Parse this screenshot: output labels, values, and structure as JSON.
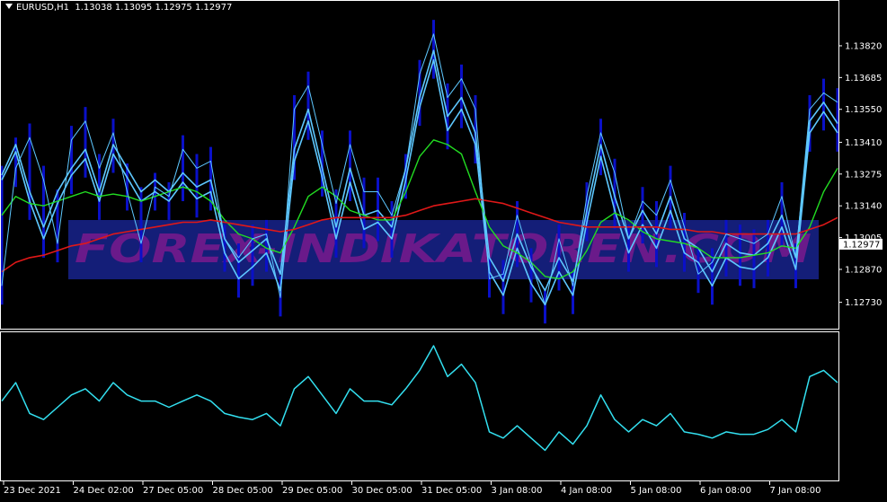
{
  "header": {
    "symbol": "EURUSD,H1",
    "ohlc": "1.13038 1.13095 1.12975 1.12977"
  },
  "watermark": "FOREX-INDIKATOREN.COM",
  "colors": {
    "background": "#000000",
    "frame": "#ffffff",
    "bars": "#0a10c8",
    "band": "#5ec8ff",
    "green_ma": "#22dd22",
    "red_ma": "#e01818",
    "oscillator": "#33e0f0",
    "watermark": "#6a1a8a",
    "watermark_box": "#141e78"
  },
  "chart_data": [
    {
      "type": "line",
      "title": "EURUSD,H1",
      "ylim": [
        1.1266,
        1.139
      ],
      "y_ticks": [
        "1.13820",
        "1.13685",
        "1.13550",
        "1.13410",
        "1.13275",
        "1.13140",
        "1.13005",
        "1.12870",
        "1.12730"
      ],
      "current_price": "1.12977",
      "x_ticks": [
        "23 Dec 2021",
        "24 Dec 02:00",
        "27 Dec 05:00",
        "28 Dec 05:00",
        "29 Dec 05:00",
        "30 Dec 05:00",
        "31 Dec 05:00",
        "3 Jan 08:00",
        "4 Jan 08:00",
        "5 Jan 08:00",
        "6 Jan 08:00",
        "7 Jan 08:00"
      ],
      "x": [
        0,
        4,
        8,
        12,
        16,
        20,
        24,
        28,
        32,
        36,
        40,
        44,
        48,
        52,
        56,
        60,
        64,
        68,
        72,
        76,
        80,
        84,
        88,
        92,
        96,
        100,
        104,
        108,
        112,
        116,
        120,
        124,
        128,
        132,
        136,
        140,
        144,
        148,
        152,
        156,
        160,
        164,
        168,
        172,
        176,
        180,
        184,
        188,
        192,
        196,
        200,
        204,
        208,
        212,
        216,
        220,
        224,
        228,
        232,
        236,
        240
      ],
      "series": [
        {
          "values": [
            1.1327,
            1.134,
            1.132,
            1.1305,
            1.132,
            1.133,
            1.1338,
            1.132,
            1.134,
            1.133,
            1.132,
            1.1325,
            1.132,
            1.1328,
            1.1322,
            1.1325,
            1.13,
            1.129,
            1.1295,
            1.13,
            1.1285,
            1.1338,
            1.1355,
            1.133,
            1.1305,
            1.133,
            1.131,
            1.1312,
            1.1305,
            1.133,
            1.136,
            1.138,
            1.1352,
            1.136,
            1.1345,
            1.1292,
            1.1282,
            1.1302,
            1.1288,
            1.1278,
            1.1292,
            1.1282,
            1.1312,
            1.134,
            1.1318,
            1.13,
            1.1312,
            1.1302,
            1.1318,
            1.13,
            1.1296,
            1.1286,
            1.1298,
            1.1294,
            1.1293,
            1.1298,
            1.131,
            1.1292,
            1.135,
            1.1358,
            1.1349
          ]
        },
        {
          "values": [
            1.1325,
            1.1337,
            1.1316,
            1.13,
            1.1315,
            1.1327,
            1.1334,
            1.1316,
            1.1336,
            1.1326,
            1.1316,
            1.132,
            1.1316,
            1.1324,
            1.1317,
            1.132,
            1.1294,
            1.1283,
            1.1288,
            1.1294,
            1.1278,
            1.1333,
            1.135,
            1.1326,
            1.13,
            1.1324,
            1.1304,
            1.1307,
            1.13,
            1.1325,
            1.1356,
            1.1376,
            1.1346,
            1.1355,
            1.134,
            1.1286,
            1.1276,
            1.1296,
            1.1281,
            1.1272,
            1.1286,
            1.1276,
            1.1307,
            1.1335,
            1.1312,
            1.1294,
            1.1306,
            1.1296,
            1.1312,
            1.1294,
            1.129,
            1.128,
            1.1292,
            1.1288,
            1.1287,
            1.1292,
            1.1305,
            1.1287,
            1.1345,
            1.1354,
            1.1345
          ]
        },
        {
          "values": [
            1.131,
            1.1318,
            1.1315,
            1.1314,
            1.1316,
            1.1318,
            1.132,
            1.1318,
            1.1319,
            1.1318,
            1.1316,
            1.1318,
            1.132,
            1.1322,
            1.132,
            1.1316,
            1.1308,
            1.1302,
            1.13,
            1.1296,
            1.1294,
            1.1305,
            1.1318,
            1.1322,
            1.1318,
            1.1312,
            1.131,
            1.1308,
            1.1308,
            1.132,
            1.1335,
            1.1342,
            1.134,
            1.1336,
            1.132,
            1.1305,
            1.1297,
            1.1294,
            1.129,
            1.1284,
            1.1283,
            1.1286,
            1.1295,
            1.1307,
            1.1311,
            1.1308,
            1.1303,
            1.13,
            1.1299,
            1.1298,
            1.1296,
            1.1292,
            1.1292,
            1.1292,
            1.1293,
            1.1294,
            1.1297,
            1.1296,
            1.1305,
            1.132,
            1.133
          ]
        },
        {
          "values": [
            1.1286,
            1.129,
            1.1292,
            1.1293,
            1.1295,
            1.1297,
            1.1298,
            1.13,
            1.1302,
            1.1303,
            1.1304,
            1.1305,
            1.1306,
            1.1307,
            1.1307,
            1.1308,
            1.1307,
            1.1306,
            1.1305,
            1.1304,
            1.1303,
            1.1304,
            1.1306,
            1.1308,
            1.1309,
            1.1309,
            1.1309,
            1.1309,
            1.1309,
            1.131,
            1.1312,
            1.1314,
            1.1315,
            1.1316,
            1.1317,
            1.1316,
            1.1315,
            1.1313,
            1.1311,
            1.1309,
            1.1307,
            1.1306,
            1.1305,
            1.1305,
            1.1305,
            1.1305,
            1.1305,
            1.1305,
            1.1304,
            1.1304,
            1.1303,
            1.1303,
            1.1302,
            1.1302,
            1.1302,
            1.1302,
            1.1302,
            1.1302,
            1.1304,
            1.1306,
            1.1309
          ]
        },
        {
          "values": [
            1.128,
            1.133,
            1.1343,
            1.1325,
            1.1298,
            1.1342,
            1.135,
            1.133,
            1.1345,
            1.132,
            1.1298,
            1.1322,
            1.1318,
            1.1338,
            1.133,
            1.1333,
            1.13,
            1.1292,
            1.13,
            1.1302,
            1.1275,
            1.1355,
            1.1365,
            1.134,
            1.1315,
            1.134,
            1.132,
            1.132,
            1.131,
            1.133,
            1.137,
            1.1387,
            1.136,
            1.1368,
            1.1355,
            1.1283,
            1.1285,
            1.131,
            1.129,
            1.1272,
            1.13,
            1.128,
            1.1318,
            1.1345,
            1.1328,
            1.13,
            1.1316,
            1.131,
            1.1325,
            1.1305,
            1.1285,
            1.129,
            1.1302,
            1.13,
            1.1298,
            1.1302,
            1.1318,
            1.1292,
            1.1355,
            1.1362,
            1.1358
          ]
        }
      ]
    },
    {
      "type": "line",
      "x": [
        0,
        4,
        8,
        12,
        16,
        20,
        24,
        28,
        32,
        36,
        40,
        44,
        48,
        52,
        56,
        60,
        64,
        68,
        72,
        76,
        80,
        84,
        88,
        92,
        96,
        100,
        104,
        108,
        112,
        116,
        120,
        124,
        128,
        132,
        136,
        140,
        144,
        148,
        152,
        156,
        160,
        164,
        168,
        172,
        176,
        180,
        184,
        188,
        192,
        196,
        200,
        204,
        208,
        212,
        216,
        220,
        224,
        228,
        232,
        236,
        240
      ],
      "series": [
        {
          "values": [
            45,
            30,
            55,
            60,
            50,
            40,
            35,
            45,
            30,
            40,
            45,
            45,
            50,
            45,
            40,
            45,
            55,
            58,
            60,
            55,
            65,
            35,
            25,
            40,
            55,
            35,
            45,
            45,
            48,
            35,
            20,
            0,
            25,
            15,
            30,
            70,
            75,
            65,
            75,
            85,
            70,
            80,
            65,
            40,
            60,
            70,
            60,
            65,
            55,
            70,
            72,
            75,
            70,
            72,
            72,
            68,
            60,
            70,
            25,
            20,
            30
          ]
        }
      ]
    }
  ]
}
